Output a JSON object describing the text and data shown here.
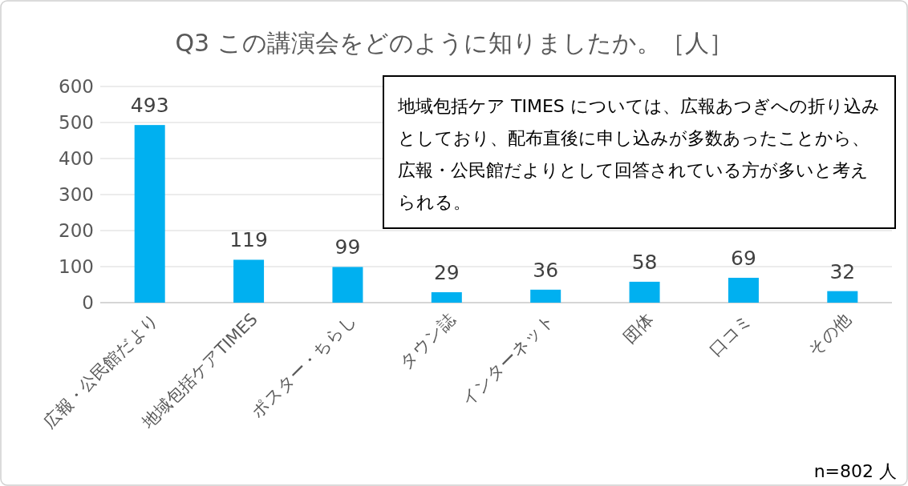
{
  "chart_data": {
    "type": "bar",
    "title": "Q3 この講演会をどのように知りましたか。［人］",
    "categories": [
      "広報・公民館だより",
      "地域包括ケアTIMES",
      "ポスター・ちらし",
      "タウン誌",
      "インターネット",
      "団体",
      "口コミ",
      "その他"
    ],
    "values": [
      493,
      119,
      99,
      29,
      36,
      58,
      69,
      32
    ],
    "color": "#00b0f0",
    "ylim": [
      0,
      600
    ],
    "yticks": [
      0,
      100,
      200,
      300,
      400,
      500,
      600
    ],
    "grid": "y",
    "data_labels": true,
    "annotations": [
      "地域包括ケア TIMES については、広報あつぎへの折り込みとしており、配布直後に申し込みが多数あったことから、広報・公民館だよりとして回答されている方が多いと考えられる。",
      "n=802 人"
    ]
  }
}
